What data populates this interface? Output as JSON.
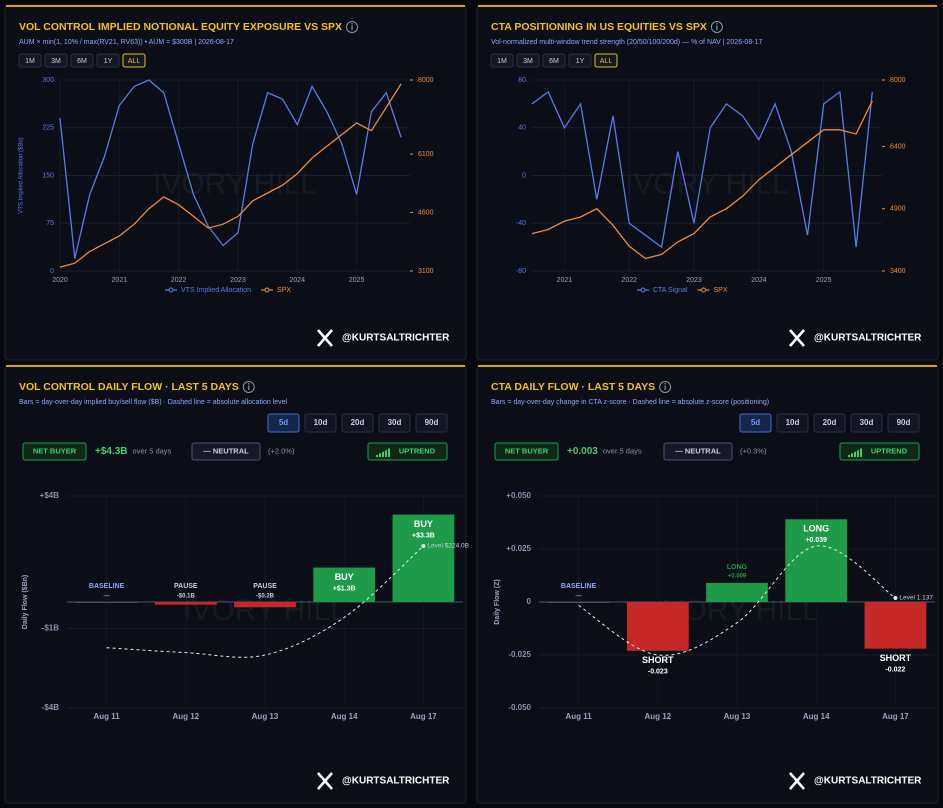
{
  "chart_data": [
    {
      "type": "line",
      "title": "VOL CONTROL IMPLIED NOTIONAL EQUITY EXPOSURE VS SPX",
      "subtitle": "AUM × min(1, 10% / max(RV21, RV63)) • AUM = $300B | 2026-08-17",
      "buttons": [
        "1M",
        "3M",
        "6M",
        "1Y",
        "ALL"
      ],
      "active_button": "ALL",
      "y_label": "VTS Implied Allocation ($Bn)",
      "x": [
        2020.0,
        2020.25,
        2020.5,
        2020.75,
        2021.0,
        2021.25,
        2021.5,
        2021.75,
        2022.0,
        2022.25,
        2022.5,
        2022.75,
        2023.0,
        2023.25,
        2023.5,
        2023.75,
        2024.0,
        2024.25,
        2024.5,
        2024.75,
        2025.0,
        2025.25,
        2025.5,
        2025.75
      ],
      "xlim": [
        2020.0,
        2025.9
      ],
      "xticks": [
        2020,
        2021,
        2022,
        2023,
        2024,
        2025
      ],
      "ylim": [
        0,
        300
      ],
      "yticks": [
        0,
        75,
        150,
        225,
        300
      ],
      "y2lim": [
        3100,
        8000
      ],
      "y2ticks": [
        3100,
        4600,
        6100,
        8000
      ],
      "series": [
        {
          "name": "VTS Implied Allocation",
          "color": "#5a7be6",
          "values": [
            240,
            20,
            120,
            180,
            260,
            290,
            300,
            280,
            200,
            120,
            70,
            40,
            60,
            200,
            280,
            270,
            230,
            290,
            250,
            200,
            120,
            250,
            280,
            210
          ]
        },
        {
          "name": "SPX",
          "color": "#f08a38",
          "axis": "y2",
          "values": [
            3200,
            3300,
            3600,
            3800,
            4000,
            4300,
            4700,
            5000,
            4800,
            4500,
            4200,
            4300,
            4500,
            4900,
            5100,
            5300,
            5600,
            6000,
            6300,
            6600,
            6900,
            6700,
            7300,
            7900
          ]
        }
      ],
      "watermark": "IVORY HILL",
      "footer": "@KURTSALTRICHTER"
    },
    {
      "type": "line",
      "title": "CTA POSITIONING IN US EQUITIES VS SPX",
      "subtitle": "Vol-normalized multi-window trend strength (20/50/100/200d) — % of NAV | 2026-08-17",
      "buttons": [
        "1M",
        "3M",
        "6M",
        "1Y",
        "ALL"
      ],
      "active_button": "ALL",
      "x": [
        2020.5,
        2020.75,
        2021.0,
        2021.25,
        2021.5,
        2021.75,
        2022.0,
        2022.25,
        2022.5,
        2022.75,
        2023.0,
        2023.25,
        2023.5,
        2023.75,
        2024.0,
        2024.25,
        2024.5,
        2024.75,
        2025.0,
        2025.25,
        2025.5,
        2025.75
      ],
      "xlim": [
        2020.5,
        2025.9
      ],
      "xticks": [
        2021,
        2022,
        2023,
        2024,
        2025
      ],
      "ylim": [
        -80,
        80
      ],
      "yticks": [
        -80,
        -40,
        0,
        40,
        80
      ],
      "y2lim": [
        3400,
        8000
      ],
      "y2ticks": [
        3400,
        4900,
        6400,
        8000
      ],
      "series": [
        {
          "name": "CTA Signal",
          "color": "#5a7be6",
          "values": [
            60,
            70,
            40,
            60,
            -20,
            50,
            -40,
            -50,
            -60,
            20,
            -40,
            40,
            60,
            50,
            30,
            60,
            20,
            -50,
            60,
            70,
            -60,
            70
          ]
        },
        {
          "name": "SPX",
          "color": "#f08a38",
          "axis": "y2",
          "values": [
            4300,
            4400,
            4600,
            4700,
            4900,
            4500,
            4000,
            3700,
            3800,
            4100,
            4300,
            4700,
            4900,
            5200,
            5600,
            5900,
            6200,
            6500,
            6800,
            6800,
            6700,
            7500
          ]
        }
      ],
      "watermark": "IVORY HILL",
      "footer": "@KURTSALTRICHTER"
    },
    {
      "type": "bar",
      "title": "VOL CONTROL DAILY FLOW · LAST 5 DAYS",
      "subtitle": "Bars = day-over-day implied buy/sell flow ($B) · Dashed line = absolute allocation level",
      "buttons": [
        "5d",
        "10d",
        "20d",
        "30d",
        "90d"
      ],
      "active_button": "5d",
      "badges": {
        "signal": "NET BUYER",
        "net": "+$4.3B",
        "net_note": "over 5 days",
        "regime": "— NEUTRAL",
        "regime_change": "(+2.0%)",
        "trend": "UPTREND"
      },
      "y_label": "Daily Flow ($Bn)",
      "categories": [
        "Aug 11",
        "Aug 12",
        "Aug 13",
        "Aug 14",
        "Aug 17"
      ],
      "values": [
        0,
        -0.1,
        -0.2,
        1.3,
        3.3
      ],
      "value_labels": [
        "—",
        "-$0.1B",
        "-$0.2B",
        "+$1.3B",
        "+$3.3B"
      ],
      "signals": [
        "BASELINE",
        "PAUSE",
        "PAUSE",
        "BUY",
        "BUY"
      ],
      "ylim": [
        -4,
        4
      ],
      "yticks": [
        {
          "value": 4,
          "label": "+$4B"
        },
        {
          "value": -1,
          "label": "-$1B"
        },
        {
          "value": -4,
          "label": "-$4B"
        }
      ],
      "colors": {
        "positive": "#1e9b48",
        "negative": "#c62828"
      },
      "level": {
        "values": [
          215.6,
          215.2,
          215.0,
          218.1,
          224.0
        ],
        "label": "Level $224.0B"
      },
      "watermark": "IVORY HILL",
      "footer": "@KURTSALTRICHTER"
    },
    {
      "type": "bar",
      "title": "CTA DAILY FLOW · LAST 5 DAYS",
      "subtitle": "Bars = day-over-day change in CTA z-score · Dashed line = absolute z-score (positioning)",
      "buttons": [
        "5d",
        "10d",
        "20d",
        "30d",
        "90d"
      ],
      "active_button": "5d",
      "badges": {
        "signal": "NET BUYER",
        "net": "+0.003",
        "net_note": "over 5 days",
        "regime": "— NEUTRAL",
        "regime_change": "(+0.3%)",
        "trend": "UPTREND"
      },
      "y_label": "Daily Flow (Z)",
      "categories": [
        "Aug 11",
        "Aug 12",
        "Aug 13",
        "Aug 14",
        "Aug 17"
      ],
      "values": [
        0,
        -0.023,
        0.009,
        0.039,
        -0.022
      ],
      "value_labels": [
        "—",
        "-0.023",
        "+0.009",
        "+0.039",
        "-0.022"
      ],
      "signals": [
        "BASELINE",
        "SHORT",
        "LONG",
        "LONG",
        "SHORT"
      ],
      "ylim": [
        -0.05,
        0.05
      ],
      "yticks": [
        {
          "value": 0.05,
          "label": "+0.050"
        },
        {
          "value": 0.025,
          "label": "+0.025"
        },
        0,
        {
          "value": -0.025,
          "label": "-0.025"
        },
        {
          "value": -0.05,
          "label": "-0.050"
        }
      ],
      "colors": {
        "positive": "#1e9b48",
        "negative": "#c62828"
      },
      "level": {
        "values": [
          1.134,
          1.114,
          1.127,
          1.158,
          1.137
        ],
        "label": "Level 1.137"
      },
      "watermark": "IVORY HILL",
      "footer": "@KURTSALTRICHTER"
    }
  ]
}
